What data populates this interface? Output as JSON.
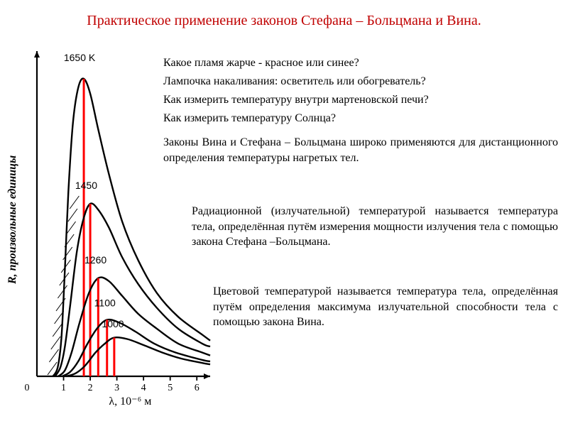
{
  "title": "Практическое применение законов Стефана – Больцмана и Вина.",
  "title_color": "#c00000",
  "title_fontsize": 20,
  "body_fontsize": 16,
  "body_color": "#000000",
  "background_color": "#ffffff",
  "questions": {
    "q1": "Какое пламя жарче - красное или синее?",
    "q2": "Лампочка накаливания: осветитель или обогреватель?",
    "q3": "Как измерить температуру внутри мартеновской печи?",
    "q4": "Как измерить температуру Солнца?"
  },
  "paragraphs": {
    "p1": "Законы Вина и Стефана – Больцмана широко применяются для дистанционного определения температуры нагретых тел.",
    "p2": "Радиационной (излучательной) температурой называется температура тела, определённая путём измерения мощности излучения тела с помощью закона Стефана –Больцмана.",
    "p3": "Цветовой температурой называется температура тела, определённая путём определения максимума излучательной способности тела с помощью закона Вина."
  },
  "chart": {
    "type": "line",
    "curve_color": "#000000",
    "curve_width": 2.4,
    "background_color": "#ffffff",
    "axis_color": "#000000",
    "axis_width": 2.2,
    "marker_line_color": "#ff0000",
    "marker_line_width": 3.0,
    "hatch_color": "#000000",
    "xlabel": "λ, 10⁻⁶ м",
    "ylabel": "R, произвольные единицы",
    "ylabel_fontstyle": "italic",
    "label_fontsize": 16,
    "tick_fontsize": 14,
    "xlim": [
      0,
      6.5
    ],
    "ylim": [
      0,
      105
    ],
    "xticks": [
      0,
      1,
      2,
      3,
      4,
      5,
      6
    ],
    "origin_label": "0",
    "series": [
      {
        "label": "1650 K",
        "peak_x": 1.76,
        "peak_y": 100,
        "label_pos": {
          "x": 1.6,
          "y": 106
        },
        "points": [
          [
            0.6,
            0
          ],
          [
            0.78,
            3
          ],
          [
            0.92,
            13
          ],
          [
            1.05,
            36
          ],
          [
            1.18,
            62
          ],
          [
            1.35,
            85
          ],
          [
            1.55,
            97
          ],
          [
            1.76,
            100
          ],
          [
            2.0,
            95
          ],
          [
            2.3,
            83
          ],
          [
            2.7,
            68
          ],
          [
            3.2,
            52
          ],
          [
            3.8,
            39
          ],
          [
            4.5,
            28
          ],
          [
            5.3,
            20
          ],
          [
            6.2,
            14
          ],
          [
            6.5,
            12
          ]
        ]
      },
      {
        "label": "1450",
        "peak_x": 2.0,
        "peak_y": 58,
        "label_pos": {
          "x": 1.85,
          "y": 63
        },
        "points": [
          [
            0.68,
            0
          ],
          [
            0.88,
            3
          ],
          [
            1.05,
            10
          ],
          [
            1.25,
            24
          ],
          [
            1.5,
            42
          ],
          [
            1.75,
            53
          ],
          [
            2.0,
            58
          ],
          [
            2.3,
            56
          ],
          [
            2.7,
            50
          ],
          [
            3.2,
            40
          ],
          [
            3.8,
            31
          ],
          [
            4.5,
            23
          ],
          [
            5.3,
            16
          ],
          [
            6.2,
            11
          ],
          [
            6.5,
            10
          ]
        ]
      },
      {
        "label": "1260",
        "peak_x": 2.3,
        "peak_y": 33,
        "label_pos": {
          "x": 2.2,
          "y": 38
        },
        "points": [
          [
            0.8,
            0
          ],
          [
            1.05,
            2
          ],
          [
            1.3,
            8
          ],
          [
            1.6,
            18
          ],
          [
            1.95,
            28
          ],
          [
            2.3,
            33
          ],
          [
            2.7,
            32
          ],
          [
            3.2,
            27
          ],
          [
            3.8,
            21
          ],
          [
            4.5,
            16
          ],
          [
            5.3,
            11
          ],
          [
            6.2,
            8
          ],
          [
            6.5,
            7
          ]
        ]
      },
      {
        "label": "1100",
        "peak_x": 2.63,
        "peak_y": 19,
        "label_pos": {
          "x": 2.55,
          "y": 23.5
        },
        "points": [
          [
            0.95,
            0
          ],
          [
            1.25,
            1.5
          ],
          [
            1.55,
            5
          ],
          [
            1.9,
            11
          ],
          [
            2.25,
            16
          ],
          [
            2.63,
            19
          ],
          [
            3.1,
            18
          ],
          [
            3.7,
            15
          ],
          [
            4.4,
            11
          ],
          [
            5.2,
            8
          ],
          [
            6.2,
            5.5
          ],
          [
            6.5,
            5
          ]
        ]
      },
      {
        "label": "1000",
        "peak_x": 2.9,
        "peak_y": 13,
        "label_pos": {
          "x": 2.85,
          "y": 16.5
        },
        "points": [
          [
            1.1,
            0
          ],
          [
            1.45,
            1
          ],
          [
            1.8,
            3.5
          ],
          [
            2.2,
            8
          ],
          [
            2.55,
            11
          ],
          [
            2.9,
            13
          ],
          [
            3.4,
            12.5
          ],
          [
            4.0,
            10.5
          ],
          [
            4.7,
            8
          ],
          [
            5.4,
            6
          ],
          [
            6.2,
            4.5
          ],
          [
            6.5,
            4
          ]
        ]
      }
    ]
  }
}
